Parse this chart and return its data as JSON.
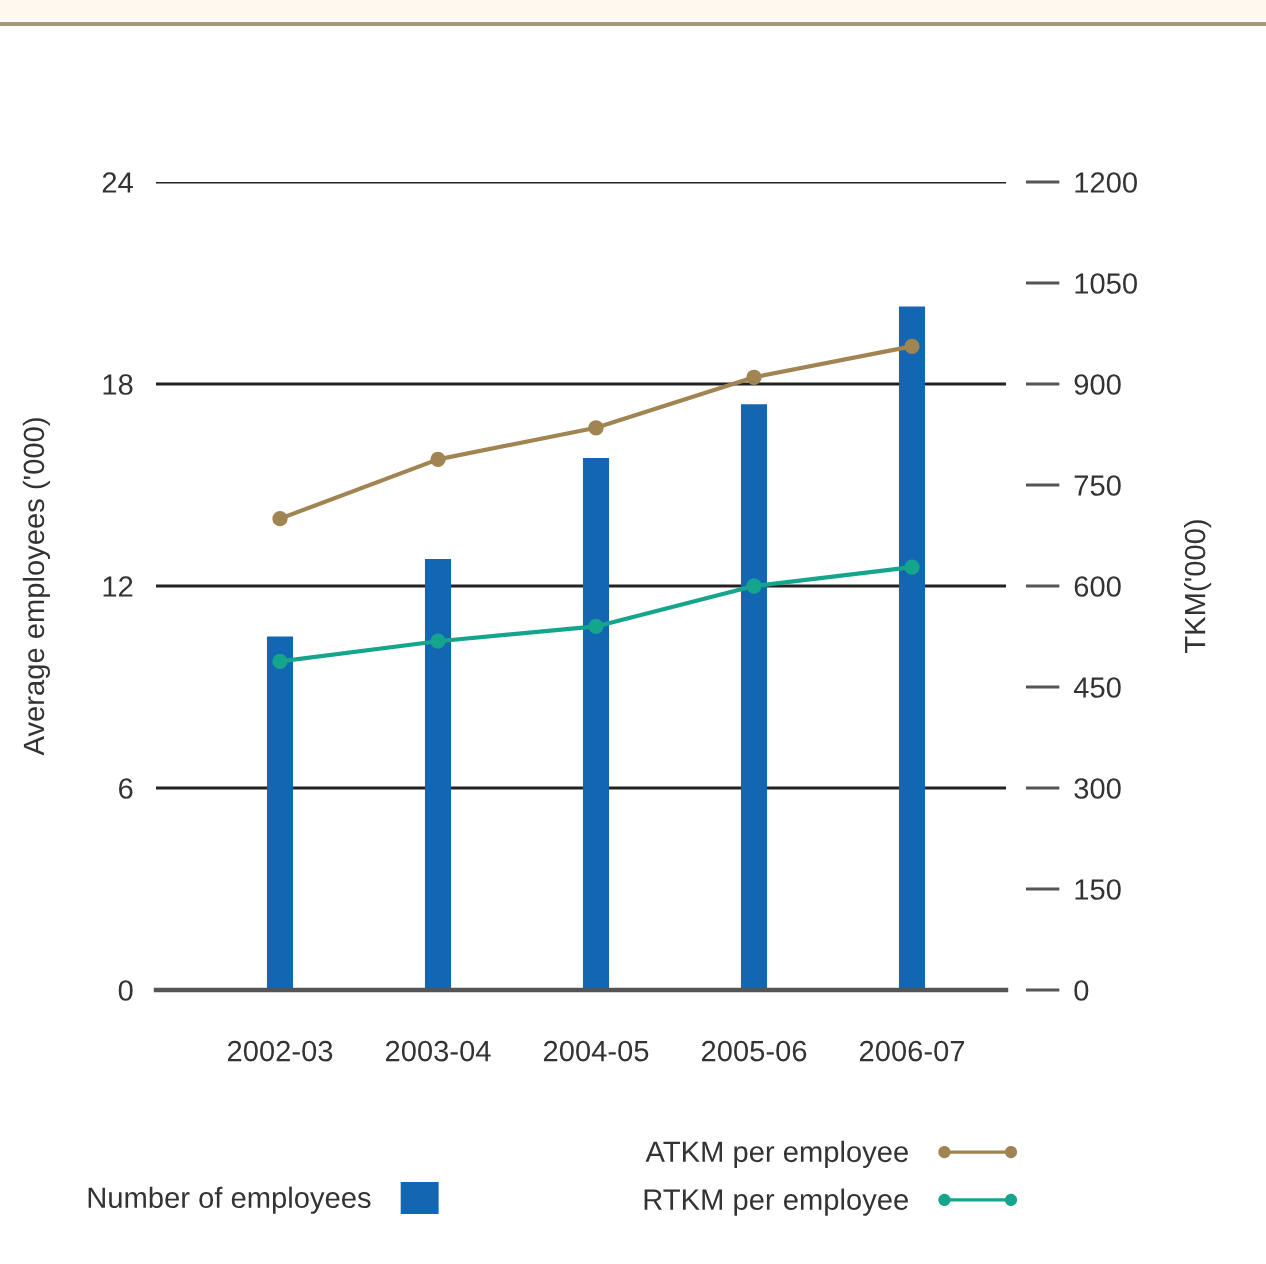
{
  "chart_data": {
    "type": "bar",
    "categories": [
      "2002-03",
      "2003-04",
      "2004-05",
      "2005-06",
      "2006-07"
    ],
    "series": [
      {
        "name": "Number of employees",
        "color": "#1366b1",
        "values": [
          10.5,
          12.8,
          15.8,
          17.4,
          20.3
        ]
      },
      {
        "name": "ATKM per employee",
        "type": "line",
        "axis": "y2",
        "color": "#a08452",
        "values": [
          700,
          788,
          835,
          910,
          956
        ]
      },
      {
        "name": "RTKM per employee",
        "type": "line",
        "axis": "y2",
        "color": "#15a58c",
        "values": [
          488,
          518,
          540,
          600,
          628
        ]
      }
    ],
    "ylabel": "Average employees ('000)",
    "y2label": "TKM('000)",
    "ylim": [
      0,
      24
    ],
    "yticks": [
      0,
      6,
      12,
      18,
      24
    ],
    "y2lim": [
      0,
      1200
    ],
    "y2ticks": [
      0,
      150,
      300,
      450,
      600,
      750,
      900,
      1050,
      1200
    ],
    "grid": "y",
    "legend": "bottom",
    "marker": "circle",
    "line_style": "solid"
  }
}
